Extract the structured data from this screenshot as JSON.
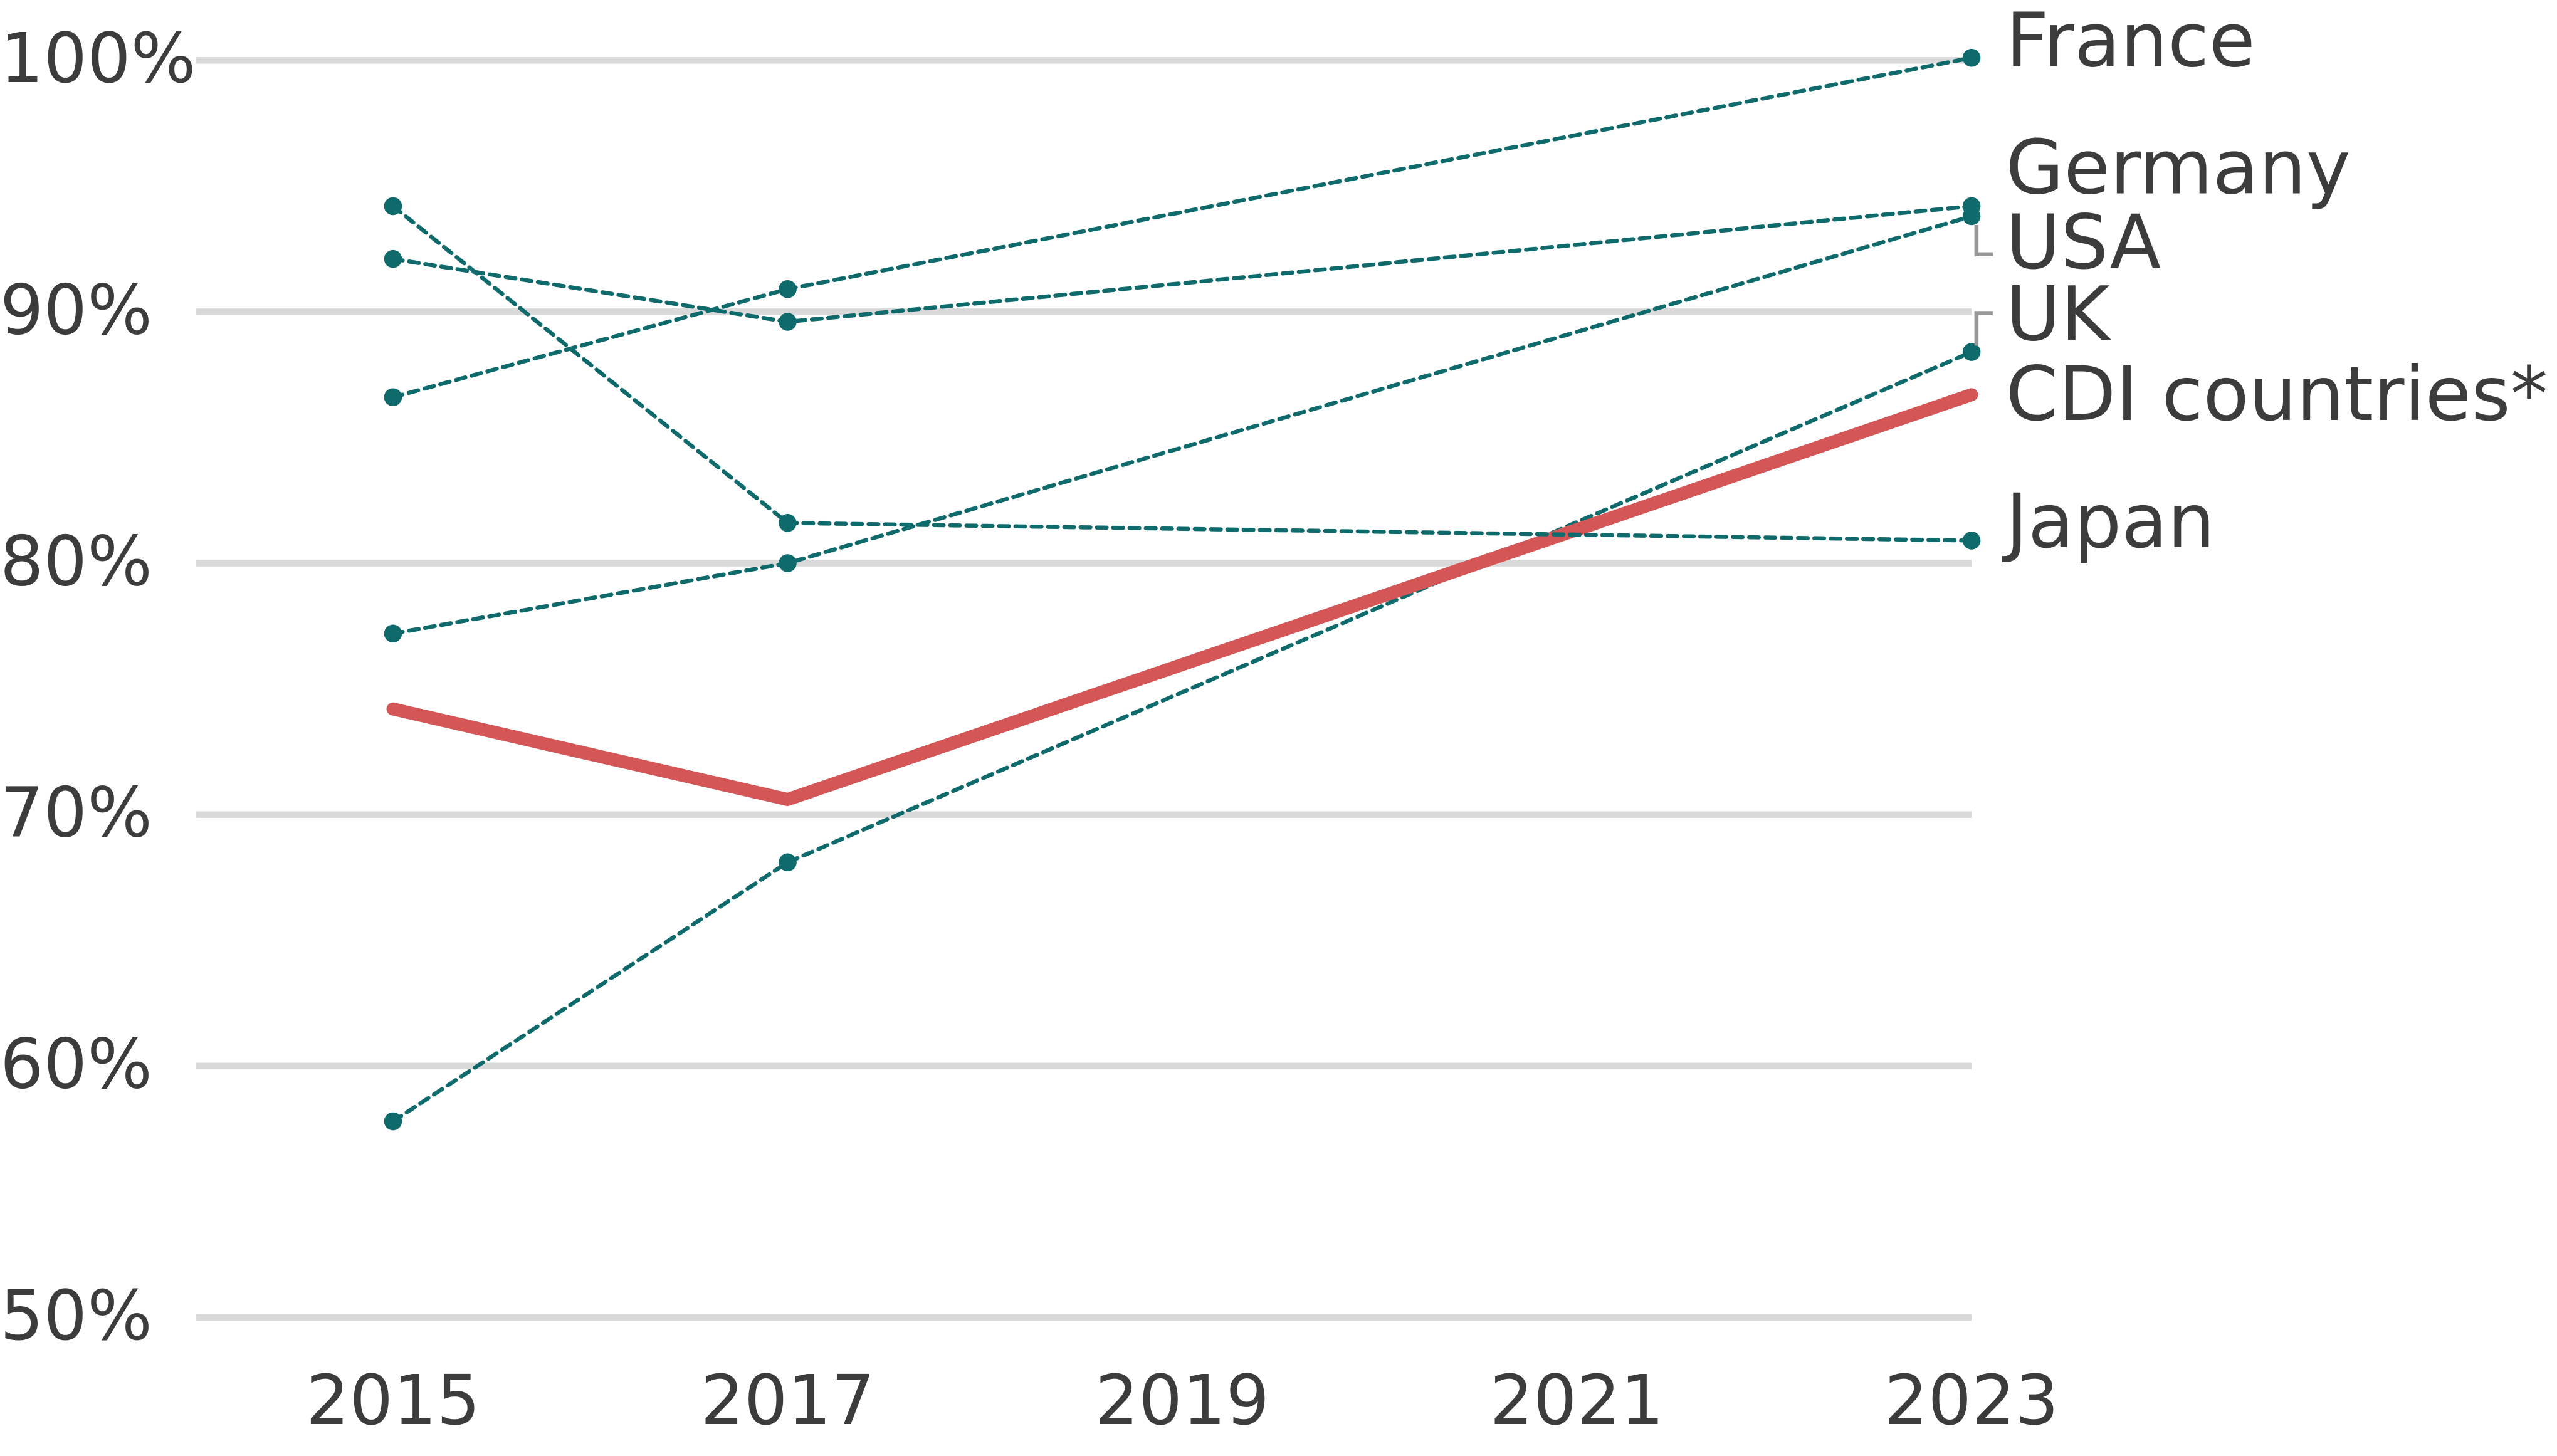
{
  "chart_data": {
    "type": "line",
    "x": [
      2015,
      2017,
      2023
    ],
    "xlim": [
      2014,
      2023
    ],
    "xticks": [
      2015,
      2017,
      2019,
      2021,
      2023
    ],
    "ylim": [
      50,
      100
    ],
    "yticks": [
      {
        "value": 50,
        "label": "50%"
      },
      {
        "value": 60,
        "label": "60%"
      },
      {
        "value": 70,
        "label": "70%"
      },
      {
        "value": 80,
        "label": "80%"
      },
      {
        "value": 90,
        "label": "90%"
      },
      {
        "value": 100,
        "label": "100%"
      }
    ],
    "grid": true,
    "series": [
      {
        "name": "France",
        "color": "#0f6a6c",
        "line_style": "dashed",
        "values": [
          86.6,
          90.9,
          100.1
        ]
      },
      {
        "name": "Germany",
        "color": "#0f6a6c",
        "line_style": "dashed",
        "values": [
          92.1,
          89.6,
          94.2
        ]
      },
      {
        "name": "USA",
        "color": "#0f6a6c",
        "line_style": "dashed",
        "values": [
          77.2,
          80.0,
          93.8
        ]
      },
      {
        "name": "UK",
        "color": "#0f6a6c",
        "line_style": "dashed",
        "values": [
          57.8,
          68.1,
          88.4
        ]
      },
      {
        "name": "CDI countries*",
        "color": "#d45656",
        "line_style": "solid",
        "values": [
          74.2,
          70.6,
          86.7
        ]
      },
      {
        "name": "Japan",
        "color": "#0f6a6c",
        "line_style": "dashed",
        "values": [
          94.2,
          81.6,
          80.9
        ]
      }
    ]
  }
}
